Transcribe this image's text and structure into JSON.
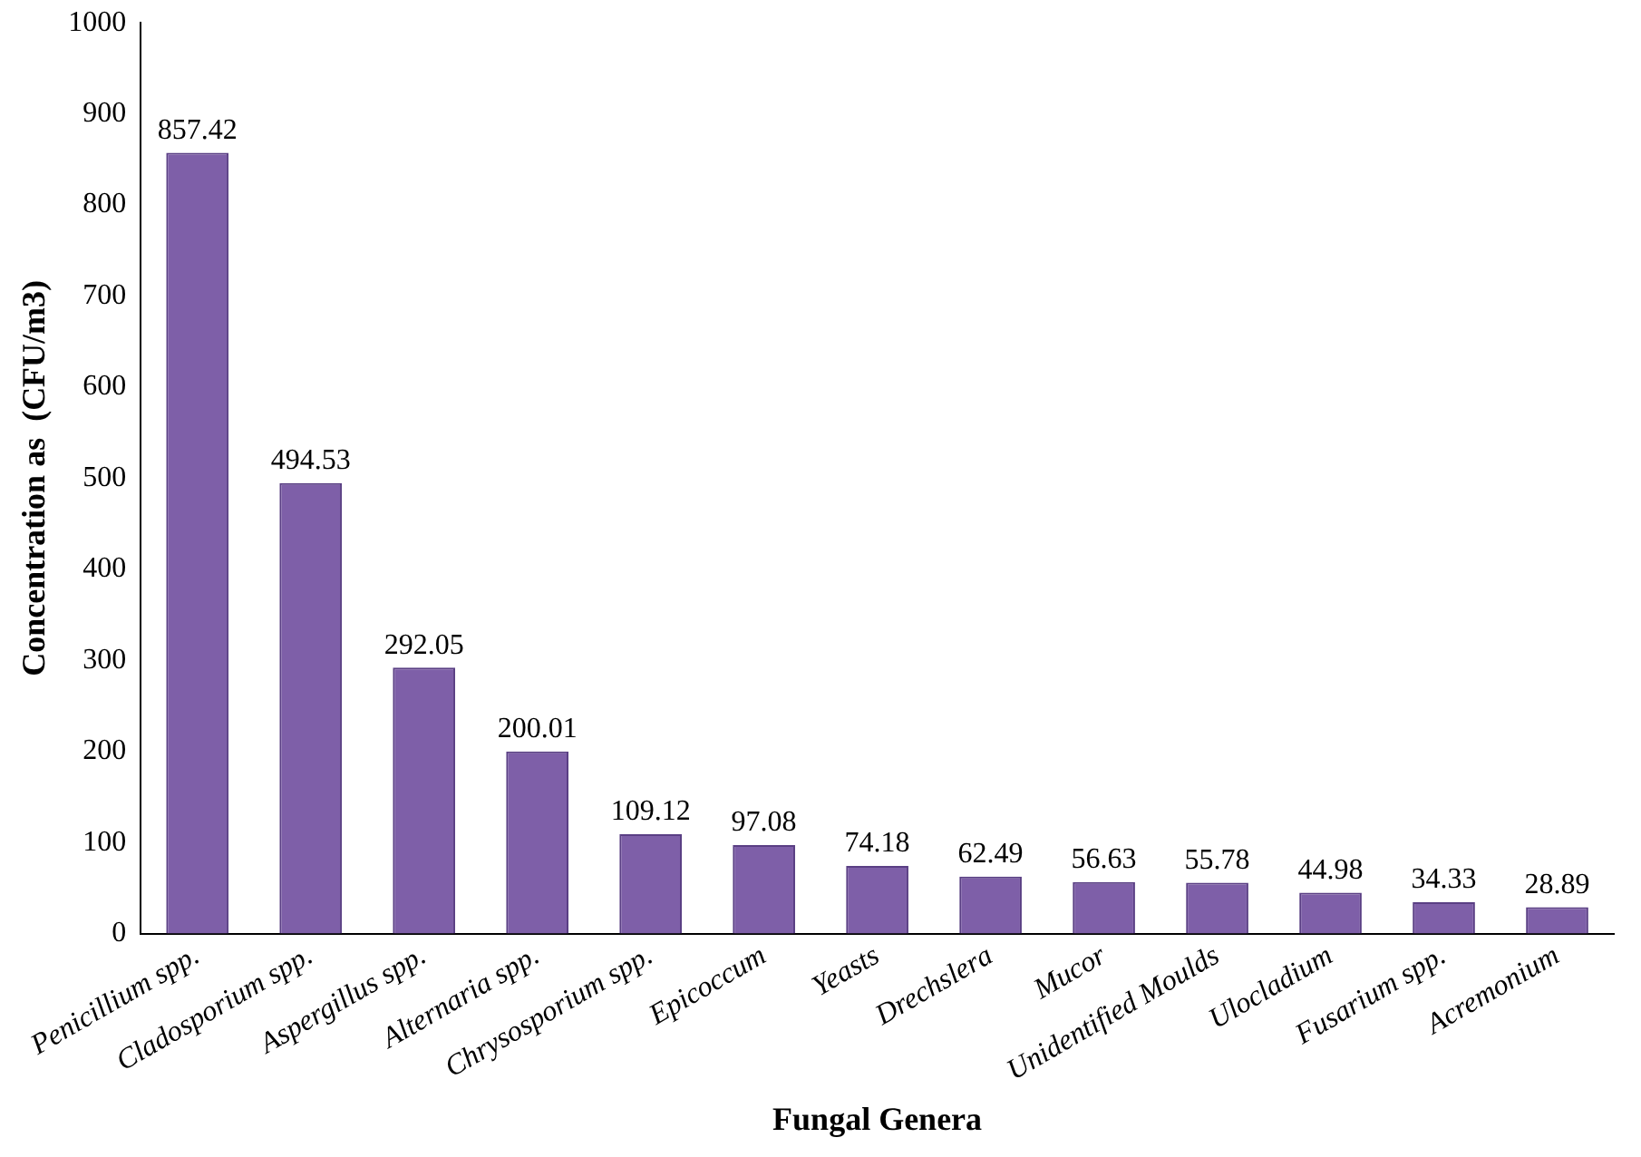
{
  "chart_data": {
    "type": "bar",
    "xlabel": "Fungal Genera",
    "ylabel": "Concentration as  (CFU/m3)",
    "categories": [
      "Penicillium spp.",
      "Cladosporium spp.",
      "Aspergillus spp.",
      "Alternaria spp.",
      "Chrysosporium spp.",
      "Epicoccum",
      "Yeasts",
      "Drechslera",
      "Mucor",
      "Unidentified Moulds",
      "Ulocladium",
      "Fusarium spp.",
      "Acremonium"
    ],
    "values": [
      857.42,
      494.53,
      292.05,
      200.01,
      109.12,
      97.08,
      74.18,
      62.49,
      56.63,
      55.78,
      44.98,
      34.33,
      28.89
    ],
    "color": "#7e5fa8",
    "ylim": [
      0,
      1000
    ],
    "yticks": [
      0,
      100,
      200,
      300,
      400,
      500,
      600,
      700,
      800,
      900,
      1000
    ],
    "grid": false,
    "legend": false,
    "data_labels": true
  }
}
